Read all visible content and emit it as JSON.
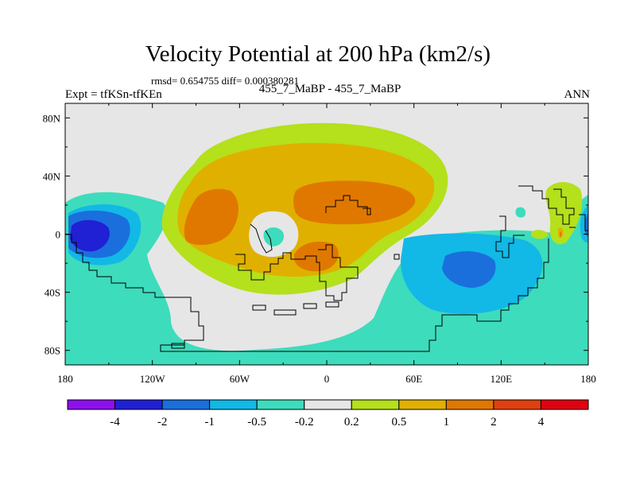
{
  "chart_data": {
    "type": "heatmap",
    "title": "Velocity Potential at 200 hPa (km2/s)",
    "stats_line": "rmsd= 0.654755 diff= 0.000380281",
    "left_label": "Expt = tfKSn-tfKEn",
    "center_label": "455_7_MaBP - 455_7_MaBP",
    "right_label": "ANN",
    "x_axis": {
      "range": [
        -180,
        180
      ],
      "ticks": [
        -180,
        -120,
        -60,
        0,
        60,
        120,
        180
      ],
      "tick_labels": [
        "180",
        "120W",
        "60W",
        "0",
        "60E",
        "120E",
        "180"
      ]
    },
    "y_axis": {
      "range": [
        -90,
        90
      ],
      "ticks": [
        80,
        40,
        0,
        -40,
        -80
      ],
      "tick_labels": [
        "80N",
        "40N",
        "0",
        "40S",
        "80S"
      ]
    },
    "colorbar": {
      "levels": [
        "-4",
        "-2",
        "-1",
        "-0.5",
        "-0.2",
        "0.2",
        "0.5",
        "1",
        "2",
        "4"
      ],
      "colors": [
        "#8c10ec",
        "#2020d4",
        "#1a6fdc",
        "#12b8e6",
        "#3ddcbc",
        "#e6e6e6",
        "#b4e01c",
        "#e0b000",
        "#e07800",
        "#e04010",
        "#e00010"
      ]
    },
    "features": [
      {
        "name": "positive-center-north-atlantic-africa",
        "lon": 20,
        "lat": 25,
        "value": 1.5
      },
      {
        "name": "positive-center-north-america",
        "lon": -80,
        "lat": 5,
        "value": 1.3
      },
      {
        "name": "positive-center-south-atlantic",
        "lon": -5,
        "lat": -20,
        "value": 1.1
      },
      {
        "name": "negative-center-central-pacific",
        "lon": -165,
        "lat": 0,
        "value": -2.2
      },
      {
        "name": "negative-center-indian-ocean",
        "lon": 95,
        "lat": -25,
        "value": -1.3
      },
      {
        "name": "negative-center-east-pacific-edge",
        "lon": 178,
        "lat": 5,
        "value": -1.2
      },
      {
        "name": "small-positive-west-pacific",
        "lon": 160,
        "lat": 5,
        "value": 0.6
      }
    ]
  }
}
